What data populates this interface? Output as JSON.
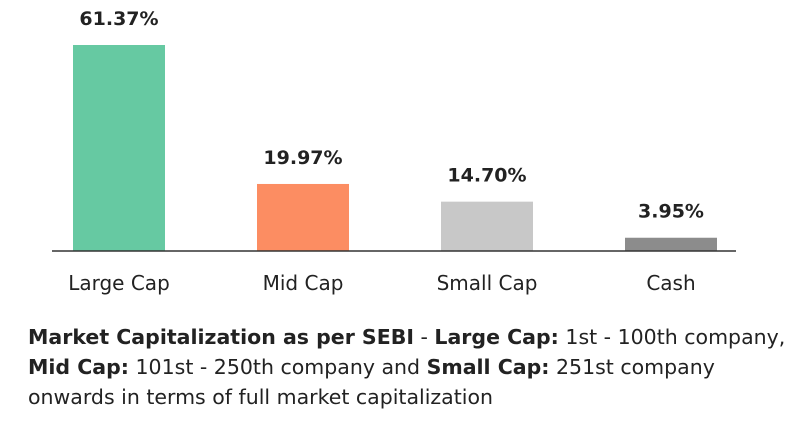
{
  "chart_data": {
    "type": "bar",
    "categories": [
      "Large Cap",
      "Mid Cap",
      "Small Cap",
      "Cash"
    ],
    "values": [
      61.37,
      19.97,
      14.7,
      3.95
    ],
    "data_labels": [
      "61.37%",
      "19.97%",
      "14.70%",
      "3.95%"
    ],
    "colors": [
      "#66c9a2",
      "#fc8d62",
      "#c8c8c8",
      "#8c8c8c"
    ],
    "ylim": [
      0,
      61.37
    ],
    "grid": false,
    "legend": "none"
  },
  "note": {
    "part1_bold": "Market Capitalization as per SEBI",
    "part1": " - ",
    "part2_bold": "Large Cap:",
    "part2": " 1st - 100th company, ",
    "part3_bold": "Mid Cap:",
    "part3": " 101st - 250th company and ",
    "part4_bold": "Small Cap:",
    "part4": " 251st company onwards in terms of full market capitalization"
  }
}
